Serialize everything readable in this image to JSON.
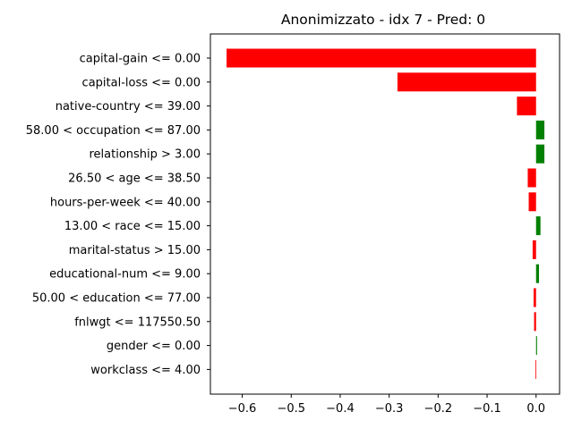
{
  "chart_data": {
    "type": "bar",
    "orientation": "horizontal",
    "title": "Anonimizzato - idx 7 - Pred: 0",
    "xlabel": "",
    "ylabel": "",
    "xlim": [
      -0.665,
      0.048
    ],
    "xticks": [
      -0.6,
      -0.5,
      -0.4,
      -0.3,
      -0.2,
      -0.1,
      0.0
    ],
    "xtick_labels": [
      "−0.6",
      "−0.5",
      "−0.4",
      "−0.3",
      "−0.2",
      "−0.1",
      "0.0"
    ],
    "grid": false,
    "legend": "none",
    "colors": {
      "negative": "#ff0000",
      "positive": "#008000"
    },
    "categories": [
      "capital-gain <= 0.00",
      "capital-loss <= 0.00",
      "native-country <= 39.00",
      "58.00 < occupation <= 87.00",
      "relationship > 3.00",
      "26.50 < age <= 38.50",
      "hours-per-week <= 40.00",
      "13.00 < race <= 15.00",
      "marital-status > 15.00",
      "educational-num <= 9.00",
      "50.00 < education <= 77.00",
      "fnlwgt <= 117550.50",
      "gender <= 0.00",
      "workclass <= 4.00"
    ],
    "values": [
      -0.632,
      -0.283,
      -0.039,
      0.017,
      0.017,
      -0.017,
      -0.015,
      0.009,
      -0.007,
      0.006,
      -0.005,
      -0.004,
      0.002,
      -0.001
    ]
  }
}
